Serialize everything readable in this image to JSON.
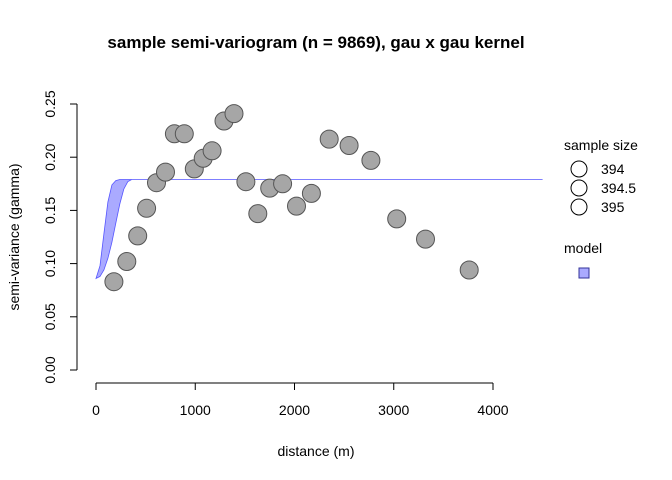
{
  "chart_data": {
    "type": "scatter",
    "title": "sample semi-variogram (n = 9869), gau x gau kernel",
    "xlabel": "distance (m)",
    "ylabel": "semi-variance (gamma)",
    "xlim": [
      0,
      4500
    ],
    "ylim": [
      0,
      0.25
    ],
    "x_ticks": [
      0,
      1000,
      2000,
      3000,
      4000
    ],
    "x_tick_labels": [
      "0",
      "1000",
      "2000",
      "3000",
      "4000"
    ],
    "y_ticks": [
      0.0,
      0.05,
      0.1,
      0.15,
      0.2,
      0.25
    ],
    "y_tick_labels": [
      "0.00",
      "0.05",
      "0.10",
      "0.15",
      "0.20",
      "0.25"
    ],
    "grid": false,
    "points": {
      "x": [
        180,
        310,
        420,
        510,
        610,
        700,
        790,
        890,
        990,
        1080,
        1170,
        1290,
        1390,
        1510,
        1630,
        1750,
        1880,
        2020,
        2170,
        2350,
        2550,
        2770,
        3030,
        3320,
        3760
      ],
      "y": [
        0.083,
        0.102,
        0.126,
        0.152,
        0.176,
        0.186,
        0.222,
        0.222,
        0.189,
        0.199,
        0.206,
        0.234,
        0.241,
        0.177,
        0.147,
        0.171,
        0.175,
        0.154,
        0.166,
        0.217,
        0.211,
        0.197,
        0.142,
        0.123,
        0.094
      ],
      "fill": "#a6a6a6",
      "stroke": "#555555"
    },
    "model_band": {
      "x": [
        0,
        40,
        80,
        120,
        160,
        200,
        240,
        280,
        320,
        360,
        400,
        4500
      ],
      "upper": [
        0.086,
        0.098,
        0.128,
        0.158,
        0.174,
        0.178,
        0.179,
        0.179,
        0.179,
        0.179,
        0.179,
        0.179
      ],
      "lower": [
        0.086,
        0.088,
        0.094,
        0.105,
        0.12,
        0.138,
        0.156,
        0.17,
        0.177,
        0.179,
        0.179,
        0.179
      ],
      "fill": "#aaaaff",
      "stroke": "#5555ff"
    },
    "legend": {
      "placement": "right",
      "size_title": "sample size",
      "size_entries": [
        "394",
        "394.5",
        "395"
      ],
      "model_title": "model",
      "model_color": "#aaaaff",
      "model_border": "#333399"
    }
  }
}
